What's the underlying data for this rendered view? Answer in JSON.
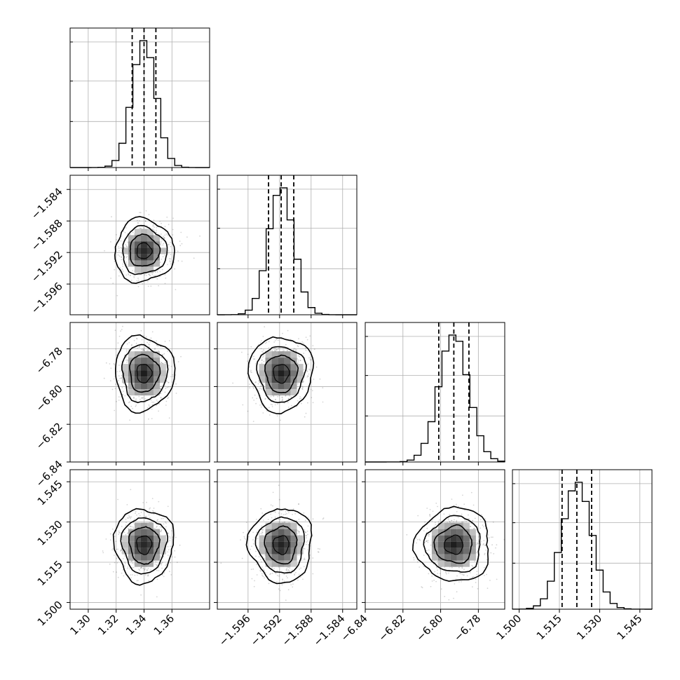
{
  "chart_data": {
    "type": "corner",
    "params": [
      {
        "center": 1.34,
        "sigma": 0.0085,
        "range": [
          1.287,
          1.387
        ],
        "quantiles": [
          1.3315,
          1.34,
          1.3485
        ],
        "ticks": [
          1.3,
          1.32,
          1.34,
          1.36
        ],
        "tick_labels": [
          "1.30",
          "1.32",
          "1.34",
          "1.36"
        ]
      },
      {
        "center": -1.5918,
        "sigma": 0.0016,
        "range": [
          -1.5999,
          -1.5822
        ],
        "quantiles": [
          -1.5934,
          -1.5918,
          -1.5902
        ],
        "ticks": [
          -1.596,
          -1.592,
          -1.588,
          -1.584
        ],
        "tick_labels": [
          "−1.596",
          "−1.592",
          "−1.588",
          "−1.584"
        ]
      },
      {
        "center": -6.793,
        "sigma": 0.0079,
        "range": [
          -6.84,
          -6.766
        ],
        "quantiles": [
          -6.801,
          -6.793,
          -6.785
        ],
        "ticks": [
          -6.84,
          -6.82,
          -6.8,
          -6.78
        ],
        "tick_labels": [
          "−6.84",
          "−6.82",
          "−6.80",
          "−6.78"
        ]
      },
      {
        "center": 1.5215,
        "sigma": 0.0055,
        "range": [
          1.4975,
          1.5495
        ],
        "quantiles": [
          1.516,
          1.5215,
          1.527
        ],
        "ticks": [
          1.5,
          1.515,
          1.53,
          1.545
        ],
        "tick_labels": [
          "1.500",
          "1.515",
          "1.530",
          "1.545"
        ]
      }
    ],
    "histogram": {
      "bins": 20,
      "quantile_lines": "dashed"
    },
    "contour_levels_sigma": [
      0.5,
      1,
      1.5,
      2
    ],
    "grid": true,
    "colors": {
      "axes": "#000000",
      "grid": "#b0b0b0",
      "points": "#000000",
      "contour": "#000000"
    }
  }
}
